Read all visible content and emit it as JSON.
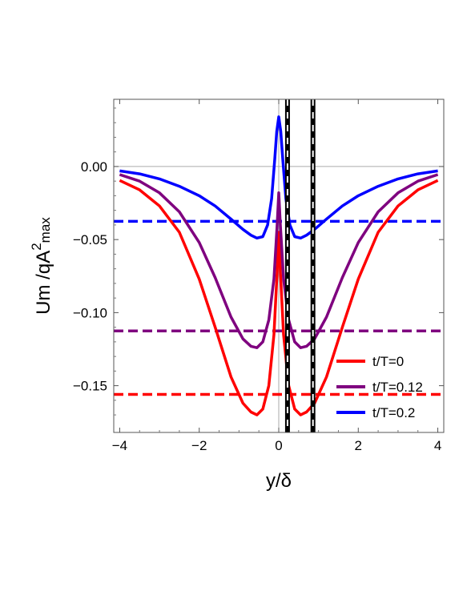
{
  "chart_data": {
    "type": "line",
    "xlabel": "y/δ",
    "ylabel": {
      "base": "Um  /qA",
      "sup": "2",
      "sub": "max"
    },
    "xlim": [
      -4.15,
      4.15
    ],
    "ylim": [
      -0.182,
      0.046
    ],
    "x_ticks": [
      -4,
      -2,
      0,
      2,
      4
    ],
    "x_tick_labels": [
      "−4",
      "−2",
      "0",
      "2",
      "4"
    ],
    "y_ticks": [
      0.0,
      -0.05,
      -0.1,
      -0.15
    ],
    "y_tick_labels": [
      "0.00",
      "−0.05",
      "−0.10",
      "−0.15"
    ],
    "grid": false,
    "legend_position": "bottom-right",
    "reference_lines": {
      "horizontal": 0.0,
      "vertical": 0.0
    },
    "vertical_markers": [
      0.22,
      0.86
    ],
    "series": [
      {
        "name": "t/T=0",
        "color": "#ff0000",
        "x": [
          -4,
          -3.5,
          -3,
          -2.5,
          -2,
          -1.6,
          -1.2,
          -0.9,
          -0.7,
          -0.55,
          -0.4,
          -0.25,
          -0.12,
          -0.04,
          0,
          0.04,
          0.12,
          0.25,
          0.4,
          0.55,
          0.7,
          0.9,
          1.2,
          1.6,
          2,
          2.5,
          3,
          3.5,
          4
        ],
        "y": [
          -0.0095,
          -0.016,
          -0.027,
          -0.045,
          -0.077,
          -0.11,
          -0.144,
          -0.162,
          -0.168,
          -0.17,
          -0.166,
          -0.15,
          -0.115,
          -0.072,
          -0.045,
          -0.072,
          -0.115,
          -0.15,
          -0.166,
          -0.17,
          -0.168,
          -0.162,
          -0.144,
          -0.11,
          -0.077,
          -0.045,
          -0.027,
          -0.016,
          -0.0095
        ],
        "average": -0.156
      },
      {
        "name": "t/T=0.12",
        "color": "#7f007f",
        "x": [
          -4,
          -3.5,
          -3,
          -2.5,
          -2,
          -1.6,
          -1.2,
          -0.9,
          -0.7,
          -0.55,
          -0.4,
          -0.25,
          -0.12,
          -0.04,
          0,
          0.04,
          0.12,
          0.25,
          0.4,
          0.55,
          0.7,
          0.9,
          1.2,
          1.6,
          2,
          2.5,
          3,
          3.5,
          4
        ],
        "y": [
          -0.0055,
          -0.01,
          -0.018,
          -0.031,
          -0.052,
          -0.076,
          -0.103,
          -0.118,
          -0.123,
          -0.124,
          -0.12,
          -0.105,
          -0.077,
          -0.04,
          -0.018,
          -0.04,
          -0.077,
          -0.105,
          -0.12,
          -0.124,
          -0.123,
          -0.118,
          -0.103,
          -0.076,
          -0.052,
          -0.031,
          -0.018,
          -0.01,
          -0.0055
        ],
        "average": -0.1125
      },
      {
        "name": "t/T=0.2",
        "color": "#0000ff",
        "x": [
          -4,
          -3.5,
          -3,
          -2.5,
          -2,
          -1.6,
          -1.2,
          -0.9,
          -0.7,
          -0.55,
          -0.4,
          -0.28,
          -0.18,
          -0.1,
          -0.05,
          0,
          0.05,
          0.1,
          0.18,
          0.28,
          0.4,
          0.55,
          0.7,
          0.9,
          1.2,
          1.6,
          2,
          2.5,
          3,
          3.5,
          4
        ],
        "y": [
          -0.003,
          -0.005,
          -0.0085,
          -0.0135,
          -0.02,
          -0.027,
          -0.036,
          -0.043,
          -0.047,
          -0.049,
          -0.048,
          -0.04,
          -0.022,
          0.005,
          0.024,
          0.034,
          0.024,
          0.005,
          -0.022,
          -0.04,
          -0.048,
          -0.049,
          -0.047,
          -0.043,
          -0.036,
          -0.027,
          -0.02,
          -0.0135,
          -0.0085,
          -0.005,
          -0.003
        ],
        "average": -0.0375
      }
    ]
  }
}
